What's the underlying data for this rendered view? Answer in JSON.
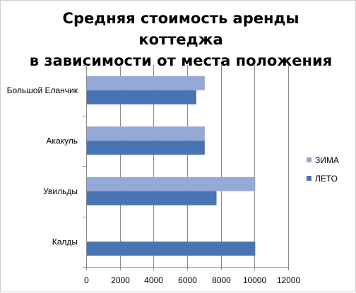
{
  "chart_data": {
    "type": "bar",
    "orientation": "horizontal",
    "title": [
      "Средняя стоимость аренды коттеджа",
      "в зависимости от места положения"
    ],
    "categories": [
      "Большой Еланчик",
      "Акакуль",
      "Увильды",
      "Калды"
    ],
    "series": [
      {
        "name": "ЗИМА",
        "color": "#95a9d6",
        "values": [
          7000,
          7000,
          10000,
          0
        ]
      },
      {
        "name": "ЛЕТО",
        "color": "#4874b4",
        "values": [
          6500,
          7000,
          7700,
          10000
        ]
      }
    ],
    "xlim": [
      0,
      12000
    ],
    "xticks": [
      0,
      2000,
      4000,
      6000,
      8000,
      10000,
      12000
    ],
    "grid": "vertical",
    "legend": "right"
  }
}
